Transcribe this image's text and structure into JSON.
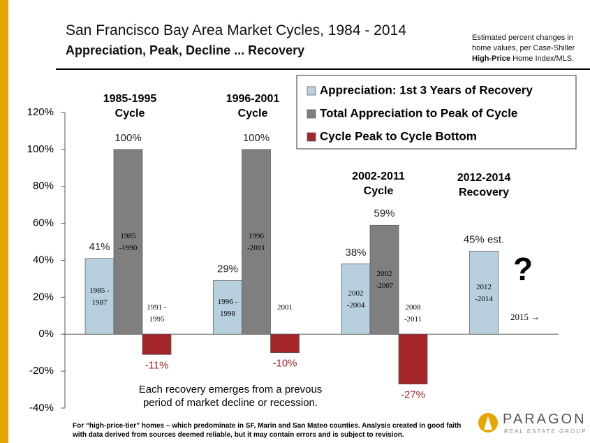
{
  "chart_data": {
    "type": "bar",
    "title": "San Francisco Bay Area Market Cycles, 1984 - 2014",
    "subtitle": "Appreciation, Peak, Decline ... Recovery",
    "note": [
      "Estimated percent changes in home values, per Case-Shiller",
      "High-Price",
      "Home Index/MLS."
    ],
    "categories": [
      "1985-1995\nCycle",
      "1996-2001\nCycle",
      "2002-2011\nCycle",
      "2012-2014\nRecovery"
    ],
    "series": [
      {
        "name": "Appreciation: 1st 3 Years of Recovery",
        "color": "#b8cfdd",
        "values": [
          41,
          29,
          38,
          45
        ],
        "value_labels": [
          "41%",
          "29%",
          "38%",
          "45% est."
        ],
        "bar_labels": [
          "1985 -\n1987",
          "1996 -\n1998",
          "2002\n-2004",
          "2012\n-2014"
        ]
      },
      {
        "name": "Total Appreciation to Peak of Cycle",
        "color": "#7f7f7f",
        "values": [
          100,
          100,
          59,
          null
        ],
        "value_labels": [
          "100%",
          "100%",
          "59%",
          null
        ],
        "bar_labels": [
          "1985\n-1990",
          "1996\n-2001",
          "2002\n-2007",
          null
        ]
      },
      {
        "name": "Cycle Peak to Cycle Bottom",
        "color": "#a3262b",
        "values": [
          -11,
          -10,
          -27,
          null
        ],
        "value_labels": [
          "-11%",
          "-10%",
          "-27%",
          null
        ],
        "bar_labels": [
          "1991 -\n1995",
          "2001",
          "2008\n-2011",
          null
        ]
      }
    ],
    "ylim": [
      -40,
      120
    ],
    "yticks": [
      {
        "value": -40,
        "label": "-40%"
      },
      {
        "value": -20,
        "label": "-20%"
      },
      {
        "value": 0,
        "label": "0%"
      },
      {
        "value": 20,
        "label": "20%"
      },
      {
        "value": 40,
        "label": "40%"
      },
      {
        "value": 60,
        "label": "60%"
      },
      {
        "value": 80,
        "label": "80%"
      },
      {
        "value": 100,
        "label": "100%"
      },
      {
        "value": 120,
        "label": "120%"
      }
    ],
    "legend": "upper right",
    "annotation": "Each recovery emerges from a prevous\nperiod of market decline or recession.",
    "question": "?",
    "next_year": "2015 →",
    "footnote": "For “high-price-tier” homes – which predominate in SF, Marin and San Mateo counties. Analysis created in good faith with data derived from sources deemed reliable, but it may contain errors and is subject to revision.",
    "logo": {
      "name": "PARAGON",
      "tagline": "REAL ESTATE GROUP"
    }
  }
}
